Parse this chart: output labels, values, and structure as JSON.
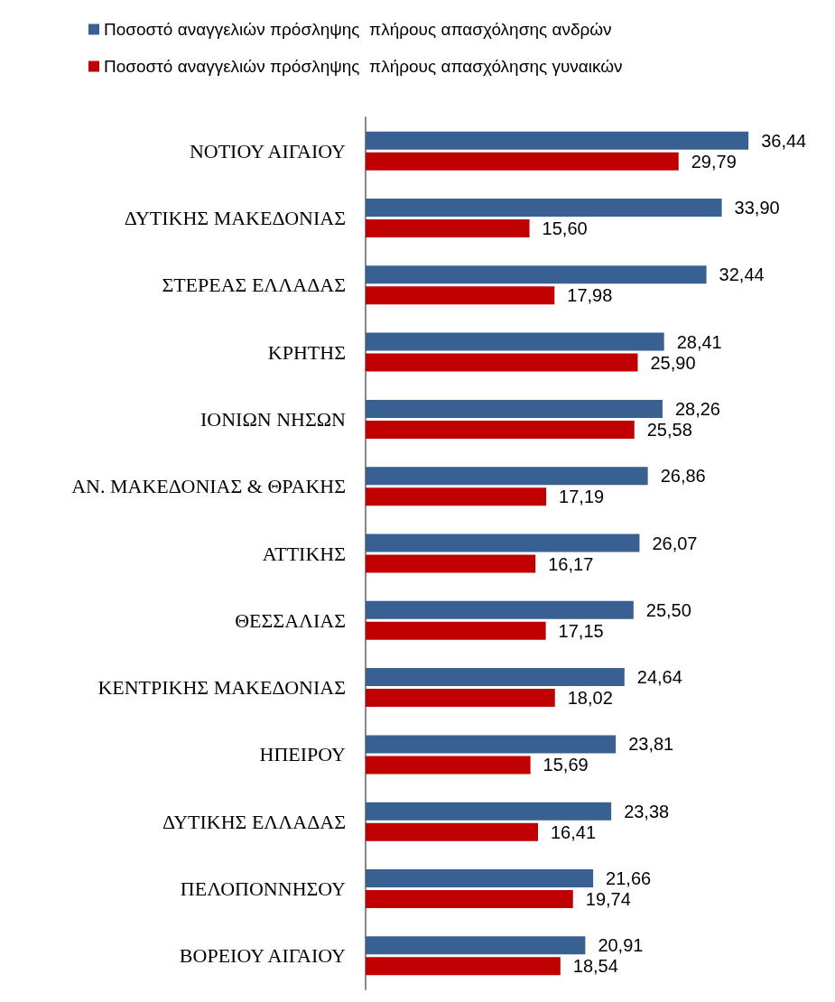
{
  "chart_data": {
    "type": "bar",
    "orientation": "horizontal",
    "legend": "top",
    "grid": false,
    "categories": [
      "ΝΟΤΙΟΥ ΑΙΓΑΙΟΥ",
      "ΔΥΤΙΚΗΣ ΜΑΚΕΔΟΝΙΑΣ",
      "ΣΤΕΡΕΑΣ ΕΛΛΑΔΑΣ",
      "ΚΡΗΤΗΣ",
      "ΙΟΝΙΩΝ ΝΗΣΩΝ",
      "ΑΝ. ΜΑΚΕΔΟΝΙΑΣ & ΘΡΑΚΗΣ",
      "ΑΤΤΙΚΗΣ",
      "ΘΕΣΣΑΛΙΑΣ",
      "ΚΕΝΤΡΙΚΗΣ ΜΑΚΕΔΟΝΙΑΣ",
      "ΗΠΕΙΡΟΥ",
      "ΔΥΤΙΚΗΣ ΕΛΛΑΔΑΣ",
      "ΠΕΛΟΠΟΝΝΗΣΟΥ",
      "ΒΟΡΕΙΟΥ ΑΙΓΑΙΟΥ"
    ],
    "series": [
      {
        "name": "Ποσοστό αναγγελιών πρόσληψης  πλήρους απασχόλησης ανδρών",
        "color": "#386192",
        "values": [
          36.44,
          33.9,
          32.44,
          28.41,
          28.26,
          26.86,
          26.07,
          25.5,
          24.64,
          23.81,
          23.38,
          21.66,
          20.91
        ],
        "value_labels": [
          "36,44",
          "33,90",
          "32,44",
          "28,41",
          "28,26",
          "26,86",
          "26,07",
          "25,50",
          "24,64",
          "23,81",
          "23,38",
          "21,66",
          "20,91"
        ]
      },
      {
        "name": "Ποσοστό αναγγελιών πρόσληψης  πλήρους απασχόλησης γυναικών",
        "color": "#c00000",
        "values": [
          29.79,
          15.6,
          17.98,
          25.9,
          25.58,
          17.19,
          16.17,
          17.15,
          18.02,
          15.69,
          16.41,
          19.74,
          18.54
        ],
        "value_labels": [
          "29,79",
          "15,60",
          "17,98",
          "25,90",
          "25,58",
          "17,19",
          "16,17",
          "17,15",
          "18,02",
          "15,69",
          "16,41",
          "19,74",
          "18,54"
        ]
      }
    ]
  }
}
